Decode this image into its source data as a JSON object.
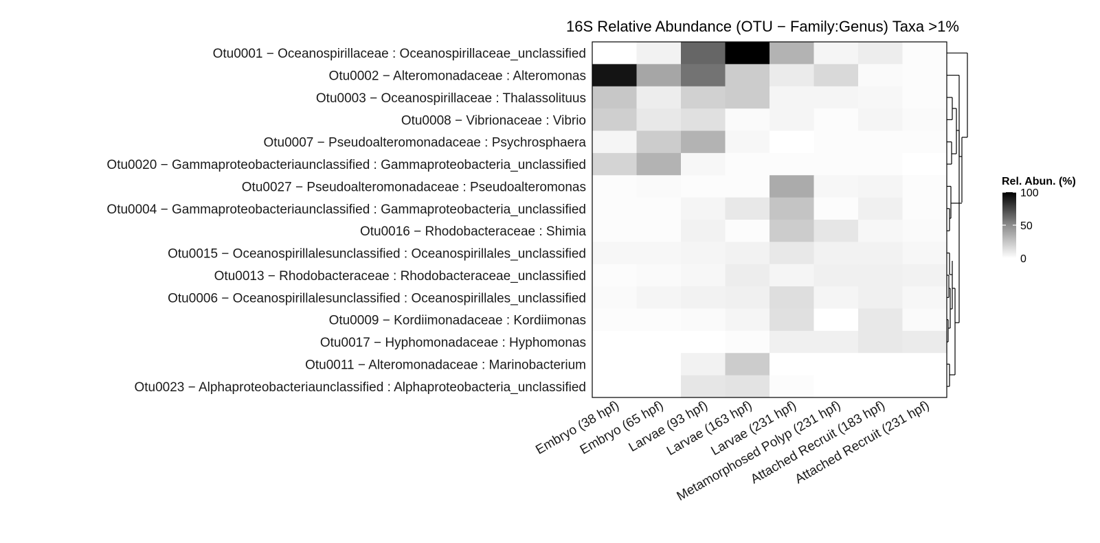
{
  "chart_data": {
    "type": "heatmap",
    "title": "16S Relative Abundance (OTU − Family:Genus) Taxa >1%",
    "columns": [
      "Embryo (38 hpf)",
      "Embryo (65 hpf)",
      "Larvae (93 hpf)",
      "Larvae (163 hpf)",
      "Larvae (231 hpf)",
      "Metamorphosed Polyp (231 hpf)",
      "Attached Recruit (183 hpf)",
      "Attached Recruit (231 hpf)"
    ],
    "rows": [
      "Otu0001 − Oceanospirillaceae : Oceanospirillaceae_unclassified",
      "Otu0002 − Alteromonadaceae : Alteromonas",
      "Otu0003 − Oceanospirillaceae : Thalassolituus",
      "Otu0008 − Vibrionaceae : Vibrio",
      "Otu0007 − Pseudoalteromonadaceae : Psychrosphaera",
      "Otu0020 − Gammaproteobacteriaunclassified : Gammaproteobacteria_unclassified",
      "Otu0027 − Pseudoalteromonadaceae : Pseudoalteromonas",
      "Otu0004 − Gammaproteobacteriaunclassified : Gammaproteobacteria_unclassified",
      "Otu0016 − Rhodobacteraceae : Shimia",
      "Otu0015 − Oceanospirillalesunclassified : Oceanospirillales_unclassified",
      "Otu0013 − Rhodobacteraceae : Rhodobacteraceae_unclassified",
      "Otu0006 − Oceanospirillalesunclassified : Oceanospirillales_unclassified",
      "Otu0009 − Kordiimonadaceae : Kordiimonas",
      "Otu0017 − Hyphomonadaceae : Hyphomonas",
      "Otu0011 − Alteromonadaceae : Marinobacterium",
      "Otu0023 − Alphaproteobacteriaunclassified : Alphaproteobacteria_unclassified"
    ],
    "values": [
      [
        0,
        5,
        60,
        100,
        30,
        4,
        7,
        1
      ],
      [
        92,
        35,
        55,
        20,
        8,
        15,
        2,
        1
      ],
      [
        22,
        7,
        18,
        20,
        4,
        4,
        3,
        1
      ],
      [
        19,
        9,
        12,
        2,
        4,
        1,
        4,
        2
      ],
      [
        4,
        20,
        30,
        3,
        0,
        1,
        1,
        1
      ],
      [
        17,
        30,
        3,
        1,
        1,
        1,
        1,
        0
      ],
      [
        1,
        2,
        1,
        1,
        33,
        3,
        4,
        1
      ],
      [
        1,
        1,
        4,
        9,
        23,
        1,
        6,
        1
      ],
      [
        1,
        1,
        5,
        1,
        20,
        10,
        3,
        2
      ],
      [
        3,
        3,
        4,
        5,
        9,
        5,
        5,
        3
      ],
      [
        1,
        2,
        3,
        7,
        4,
        6,
        6,
        5
      ],
      [
        2,
        4,
        5,
        6,
        13,
        4,
        6,
        3
      ],
      [
        1,
        1,
        2,
        4,
        12,
        0,
        9,
        2
      ],
      [
        0,
        0,
        0,
        1,
        6,
        6,
        9,
        8
      ],
      [
        0,
        0,
        5,
        20,
        0,
        0,
        0,
        0
      ],
      [
        0,
        0,
        10,
        11,
        1,
        0,
        0,
        0
      ]
    ],
    "color_low": "#ffffff",
    "color_high": "#000000",
    "legend": {
      "title": "Rel. Abun. (%)",
      "ticks": [
        "100",
        "50",
        "0"
      ],
      "tick_values": [
        100,
        50,
        0
      ],
      "range": [
        0,
        100
      ],
      "placement": "right"
    },
    "row_dendrogram": "right"
  }
}
